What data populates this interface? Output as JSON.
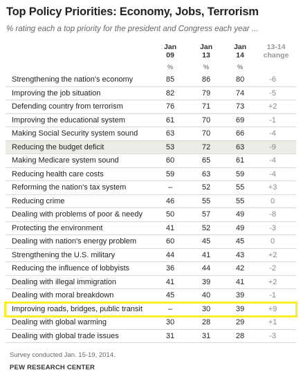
{
  "title": "Top Policy Priorities: Economy, Jobs, Terrorism",
  "subtitle": "% rating each a top priority for the president and Congress each year ...",
  "columns": [
    {
      "line1": "Jan",
      "line2": "09",
      "unit": "%"
    },
    {
      "line1": "Jan",
      "line2": "13",
      "unit": "%"
    },
    {
      "line1": "Jan",
      "line2": "14",
      "unit": "%"
    },
    {
      "line1": "13-14",
      "line2": "change",
      "unit": ""
    }
  ],
  "footnote": "Survey conducted Jan. 15-19, 2014.",
  "source": "PEW RESEARCH CENTER",
  "colors": {
    "shade": "#ecebe6",
    "highlight": "#fbee23",
    "change_text": "#888888"
  },
  "chart_data": {
    "type": "table",
    "title": "Top Policy Priorities: Economy, Jobs, Terrorism",
    "subtitle": "% rating each a top priority for the president and Congress each year ...",
    "columns": [
      "Jan 09",
      "Jan 13",
      "Jan 14",
      "13-14 change"
    ],
    "rows": [
      {
        "label": "Strengthening the nation's economy",
        "values": [
          "85",
          "86",
          "80",
          "-6"
        ]
      },
      {
        "label": "Improving the job situation",
        "values": [
          "82",
          "79",
          "74",
          "-5"
        ]
      },
      {
        "label": "Defending country from terrorism",
        "values": [
          "76",
          "71",
          "73",
          "+2"
        ]
      },
      {
        "label": "Improving the educational system",
        "values": [
          "61",
          "70",
          "69",
          "-1"
        ]
      },
      {
        "label": "Making Social Security system sound",
        "values": [
          "63",
          "70",
          "66",
          "-4"
        ]
      },
      {
        "label": "Reducing the budget deficit",
        "values": [
          "53",
          "72",
          "63",
          "-9"
        ],
        "shaded": true
      },
      {
        "label": "Making Medicare system sound",
        "values": [
          "60",
          "65",
          "61",
          "-4"
        ]
      },
      {
        "label": "Reducing health care costs",
        "values": [
          "59",
          "63",
          "59",
          "-4"
        ]
      },
      {
        "label": "Reforming the nation's tax system",
        "values": [
          "–",
          "52",
          "55",
          "+3"
        ]
      },
      {
        "label": "Reducing crime",
        "values": [
          "46",
          "55",
          "55",
          "0"
        ]
      },
      {
        "label": "Dealing with problems of poor & needy",
        "values": [
          "50",
          "57",
          "49",
          "-8"
        ]
      },
      {
        "label": "Protecting the environment",
        "values": [
          "41",
          "52",
          "49",
          "-3"
        ]
      },
      {
        "label": "Dealing with nation's energy problem",
        "values": [
          "60",
          "45",
          "45",
          "0"
        ]
      },
      {
        "label": "Strengthening the U.S. military",
        "values": [
          "44",
          "41",
          "43",
          "+2"
        ]
      },
      {
        "label": "Reducing the influence of lobbyists",
        "values": [
          "36",
          "44",
          "42",
          "-2"
        ]
      },
      {
        "label": "Dealing with illegal immigration",
        "values": [
          "41",
          "39",
          "41",
          "+2"
        ]
      },
      {
        "label": "Dealing with moral breakdown",
        "values": [
          "45",
          "40",
          "39",
          "-1"
        ]
      },
      {
        "label": "Improving roads, bridges, public transit",
        "values": [
          "–",
          "30",
          "39",
          "+9"
        ],
        "highlighted": true
      },
      {
        "label": "Dealing with global warming",
        "values": [
          "30",
          "28",
          "29",
          "+1"
        ]
      },
      {
        "label": "Dealing with global trade issues",
        "values": [
          "31",
          "31",
          "28",
          "-3"
        ]
      }
    ]
  }
}
